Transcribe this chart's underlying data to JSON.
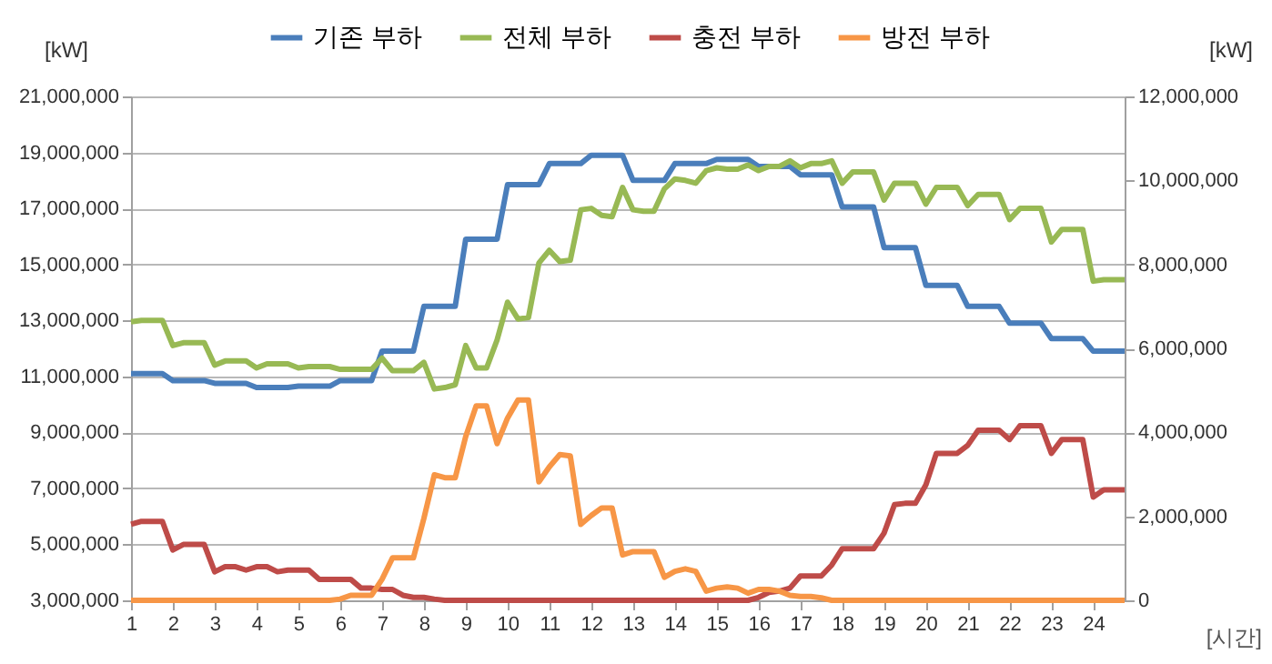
{
  "chart_data": {
    "type": "line",
    "xlabel": "[시간]",
    "ylabel": "[kW]",
    "y2label": "[kW]",
    "legend": "top",
    "grid": "y",
    "x": [
      1,
      1.25,
      1.5,
      1.75,
      2,
      2.25,
      2.5,
      2.75,
      3,
      3.25,
      3.5,
      3.75,
      4,
      4.25,
      4.5,
      4.75,
      5,
      5.25,
      5.5,
      5.75,
      6,
      6.25,
      6.5,
      6.75,
      7,
      7.25,
      7.5,
      7.75,
      8,
      8.25,
      8.5,
      8.75,
      9,
      9.25,
      9.5,
      9.75,
      10,
      10.25,
      10.5,
      10.75,
      11,
      11.25,
      11.5,
      11.75,
      12,
      12.25,
      12.5,
      12.75,
      13,
      13.25,
      13.5,
      13.75,
      14,
      14.25,
      14.5,
      14.75,
      15,
      15.25,
      15.5,
      15.75,
      16,
      16.25,
      16.5,
      16.75,
      17,
      17.25,
      17.5,
      17.75,
      18,
      18.25,
      18.5,
      18.75,
      19,
      19.25,
      19.5,
      19.75,
      20,
      20.25,
      20.5,
      20.75,
      21,
      21.25,
      21.5,
      21.75,
      22,
      22.25,
      22.5,
      22.75,
      23,
      23.25,
      23.5,
      23.75,
      24,
      24.25,
      24.5,
      24.75
    ],
    "xlim": [
      1,
      24.75
    ],
    "xticks": [
      1,
      2,
      3,
      4,
      5,
      6,
      7,
      8,
      9,
      10,
      11,
      12,
      13,
      14,
      15,
      16,
      17,
      18,
      19,
      20,
      21,
      22,
      23,
      24
    ],
    "ylim": [
      3000000,
      21000000
    ],
    "yticks": [
      {
        "value": 3000000,
        "label": "3,000,000"
      },
      {
        "value": 5000000,
        "label": "5,000,000"
      },
      {
        "value": 7000000,
        "label": "7,000,000"
      },
      {
        "value": 9000000,
        "label": "9,000,000"
      },
      {
        "value": 11000000,
        "label": "11,000,000"
      },
      {
        "value": 13000000,
        "label": "13,000,000"
      },
      {
        "value": 15000000,
        "label": "15,000,000"
      },
      {
        "value": 17000000,
        "label": "17,000,000"
      },
      {
        "value": 19000000,
        "label": "19,000,000"
      },
      {
        "value": 21000000,
        "label": "21,000,000"
      }
    ],
    "y2lim": [
      0,
      12000000
    ],
    "y2ticks": [
      0,
      {
        "value": 2000000,
        "label": "2,000,000"
      },
      {
        "value": 4000000,
        "label": "4,000,000"
      },
      {
        "value": 6000000,
        "label": "6,000,000"
      },
      {
        "value": 8000000,
        "label": "8,000,000"
      },
      {
        "value": 10000000,
        "label": "10,000,000"
      },
      {
        "value": 12000000,
        "label": "12,000,000"
      }
    ],
    "series": [
      {
        "name": "기존 부하",
        "color": "#4a7ebb",
        "values": [
          11100000,
          11100000,
          11100000,
          11100000,
          10850000,
          10850000,
          10850000,
          10850000,
          10750000,
          10750000,
          10750000,
          10750000,
          10600000,
          10600000,
          10600000,
          10600000,
          10650000,
          10650000,
          10650000,
          10650000,
          10850000,
          10850000,
          10850000,
          10850000,
          11900000,
          11900000,
          11900000,
          11900000,
          13500000,
          13500000,
          13500000,
          13500000,
          15900000,
          15900000,
          15900000,
          15900000,
          17850000,
          17850000,
          17850000,
          17850000,
          18600000,
          18600000,
          18600000,
          18600000,
          18900000,
          18900000,
          18900000,
          18900000,
          18000000,
          18000000,
          18000000,
          18000000,
          18600000,
          18600000,
          18600000,
          18600000,
          18750000,
          18750000,
          18750000,
          18750000,
          18500000,
          18500000,
          18500000,
          18500000,
          18200000,
          18200000,
          18200000,
          18200000,
          17050000,
          17050000,
          17050000,
          17050000,
          15600000,
          15600000,
          15600000,
          15600000,
          14250000,
          14250000,
          14250000,
          14250000,
          13500000,
          13500000,
          13500000,
          13500000,
          12900000,
          12900000,
          12900000,
          12900000,
          12350000,
          12350000,
          12350000,
          12350000,
          11900000,
          11900000,
          11900000,
          11900000
        ]
      },
      {
        "name": "전체 부하",
        "color": "#98b954",
        "values": [
          12950000,
          13000000,
          13000000,
          13000000,
          12100000,
          12200000,
          12200000,
          12200000,
          11400000,
          11550000,
          11550000,
          11550000,
          11300000,
          11450000,
          11450000,
          11450000,
          11300000,
          11350000,
          11350000,
          11350000,
          11250000,
          11250000,
          11250000,
          11250000,
          11650000,
          11200000,
          11200000,
          11200000,
          11500000,
          10550000,
          10600000,
          10700000,
          12100000,
          11300000,
          11300000,
          12300000,
          13650000,
          13050000,
          13100000,
          15050000,
          15500000,
          15100000,
          15150000,
          16950000,
          17000000,
          16750000,
          16700000,
          17750000,
          16950000,
          16900000,
          16900000,
          17700000,
          18050000,
          18000000,
          17900000,
          18350000,
          18450000,
          18400000,
          18400000,
          18550000,
          18350000,
          18500000,
          18500000,
          18700000,
          18450000,
          18600000,
          18600000,
          18700000,
          17900000,
          18300000,
          18300000,
          18300000,
          17300000,
          17900000,
          17900000,
          17900000,
          17150000,
          17750000,
          17750000,
          17750000,
          17100000,
          17500000,
          17500000,
          17500000,
          16600000,
          17000000,
          17000000,
          17000000,
          15800000,
          16250000,
          16250000,
          16250000,
          14400000,
          14450000,
          14450000,
          14450000
        ]
      },
      {
        "name": "충전 부하",
        "color": "#be4b48",
        "axis": "y2",
        "values": [
          1810000,
          1880000,
          1880000,
          1880000,
          1200000,
          1330000,
          1330000,
          1330000,
          680000,
          800000,
          800000,
          720000,
          800000,
          800000,
          680000,
          720000,
          720000,
          720000,
          500000,
          500000,
          500000,
          500000,
          290000,
          290000,
          260000,
          260000,
          120000,
          70000,
          70000,
          30000,
          0,
          0,
          0,
          0,
          0,
          0,
          0,
          0,
          0,
          0,
          0,
          0,
          0,
          0,
          0,
          0,
          0,
          0,
          0,
          0,
          0,
          0,
          0,
          0,
          0,
          0,
          0,
          0,
          0,
          0,
          70000,
          190000,
          220000,
          290000,
          580000,
          580000,
          580000,
          840000,
          1230000,
          1230000,
          1230000,
          1230000,
          1600000,
          2280000,
          2310000,
          2310000,
          2750000,
          3500000,
          3500000,
          3500000,
          3690000,
          4050000,
          4050000,
          4050000,
          3830000,
          4160000,
          4160000,
          4160000,
          3500000,
          3830000,
          3830000,
          3830000,
          2460000,
          2630000,
          2630000,
          2630000
        ]
      },
      {
        "name": "방전 부하",
        "color": "#f79646",
        "axis": "y2",
        "values": [
          0,
          0,
          0,
          0,
          0,
          0,
          0,
          0,
          0,
          0,
          0,
          0,
          0,
          0,
          0,
          0,
          0,
          0,
          0,
          0,
          30000,
          120000,
          120000,
          120000,
          500000,
          1010000,
          1010000,
          1010000,
          1950000,
          2990000,
          2920000,
          2920000,
          3900000,
          4630000,
          4630000,
          3730000,
          4340000,
          4770000,
          4770000,
          2820000,
          3180000,
          3470000,
          3440000,
          1810000,
          2020000,
          2200000,
          2200000,
          1080000,
          1160000,
          1160000,
          1160000,
          550000,
          690000,
          750000,
          690000,
          220000,
          290000,
          320000,
          290000,
          170000,
          260000,
          260000,
          220000,
          120000,
          90000,
          90000,
          60000,
          0,
          0,
          0,
          0,
          0,
          0,
          0,
          0,
          0,
          0,
          0,
          0,
          0,
          0,
          0,
          0,
          0,
          0,
          0,
          0,
          0,
          0,
          0,
          0,
          0,
          0,
          0,
          0,
          0
        ]
      }
    ]
  }
}
